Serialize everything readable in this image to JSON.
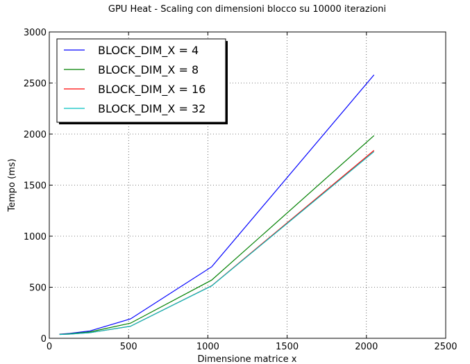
{
  "chart_data": {
    "type": "line",
    "title": "GPU Heat - Scaling con dimensioni blocco su 10000 iterazioni",
    "xlabel": "Dimensione matrice x",
    "ylabel": "Tempo (ms)",
    "xlim": [
      0,
      2500
    ],
    "ylim": [
      0,
      3000
    ],
    "xticks": [
      0,
      500,
      1000,
      1500,
      2000,
      2500
    ],
    "yticks": [
      0,
      500,
      1000,
      1500,
      2000,
      2500,
      3000
    ],
    "grid": true,
    "legend_position": "top-left",
    "x": [
      64,
      128,
      256,
      512,
      1024,
      2048
    ],
    "series": [
      {
        "name": "BLOCK_DIM_X = 4",
        "color": "#0000ff",
        "values": [
          40,
          48,
          72,
          190,
          700,
          2580
        ]
      },
      {
        "name": "BLOCK_DIM_X = 8",
        "color": "#008000",
        "values": [
          38,
          44,
          62,
          148,
          570,
          1985
        ]
      },
      {
        "name": "BLOCK_DIM_X = 16",
        "color": "#ff0000",
        "values": [
          37,
          41,
          55,
          118,
          515,
          1840
        ]
      },
      {
        "name": "BLOCK_DIM_X = 32",
        "color": "#00bfbf",
        "values": [
          37,
          41,
          55,
          118,
          513,
          1828
        ]
      }
    ]
  }
}
